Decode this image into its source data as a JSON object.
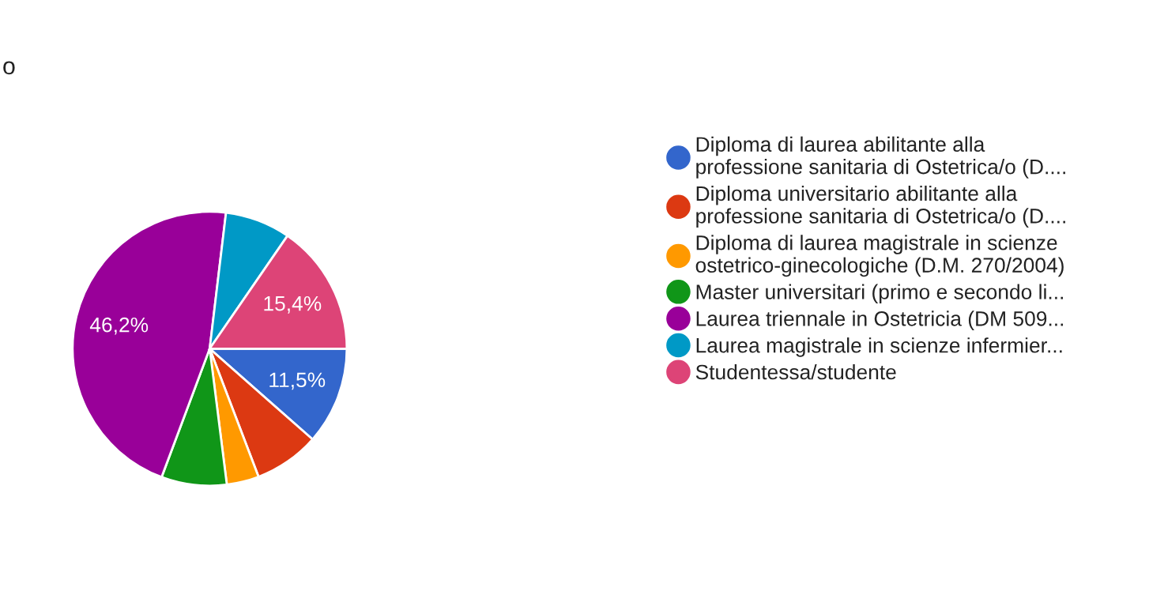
{
  "chart_data": {
    "type": "pie",
    "title": "o",
    "categories": [
      "Diploma di laurea abilitante alla\nprofessione sanitaria di Ostetrica/o (D....",
      "Diploma universitario abilitante alla\nprofessione sanitaria di Ostetrica/o (D....",
      "Diploma di laurea magistrale in scienze\nostetrico-ginecologiche (D.M. 270/2004)",
      "Master universitari (primo e secondo li...",
      "Laurea triennale in Ostetricia (DM 509...",
      "Laurea magistrale in scienze infermier...",
      "Studentessa/studente"
    ],
    "values": [
      11.5,
      7.7,
      3.8,
      7.7,
      46.2,
      7.7,
      15.4
    ],
    "colors": [
      "#3366cc",
      "#dc3912",
      "#ff9900",
      "#109618",
      "#990099",
      "#0099c6",
      "#dd4477"
    ],
    "value_labels": [
      "11,5%",
      null,
      null,
      null,
      "46,2%",
      null,
      "15,4%"
    ],
    "legend": "right"
  }
}
